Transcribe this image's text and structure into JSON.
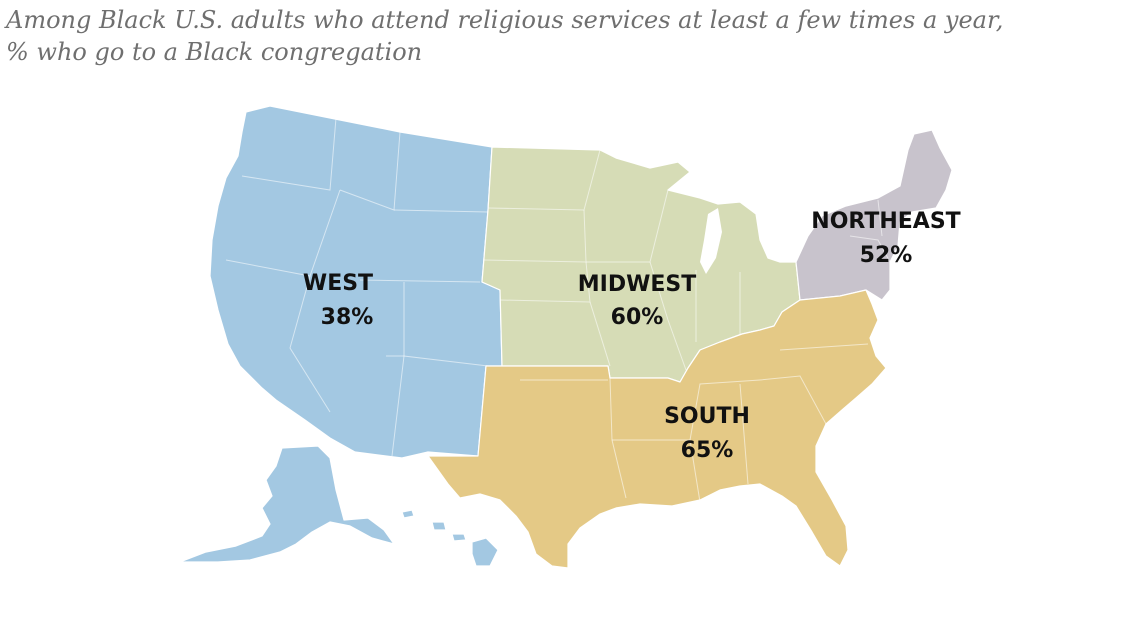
{
  "title": {
    "line1": "Among Black U.S. adults who attend religious services at least a few times a year,",
    "line2": "% who go to a Black congregation"
  },
  "regions": [
    {
      "id": "west",
      "name": "WEST",
      "value": "38%",
      "color": "#a3c8e2"
    },
    {
      "id": "midwest",
      "name": "MIDWEST",
      "value": "60%",
      "color": "#d6dcb6"
    },
    {
      "id": "northeast",
      "name": "NORTHEAST",
      "value": "52%",
      "color": "#c8c3cc"
    },
    {
      "id": "south",
      "name": "SOUTH",
      "value": "65%",
      "color": "#e4c986"
    }
  ]
}
